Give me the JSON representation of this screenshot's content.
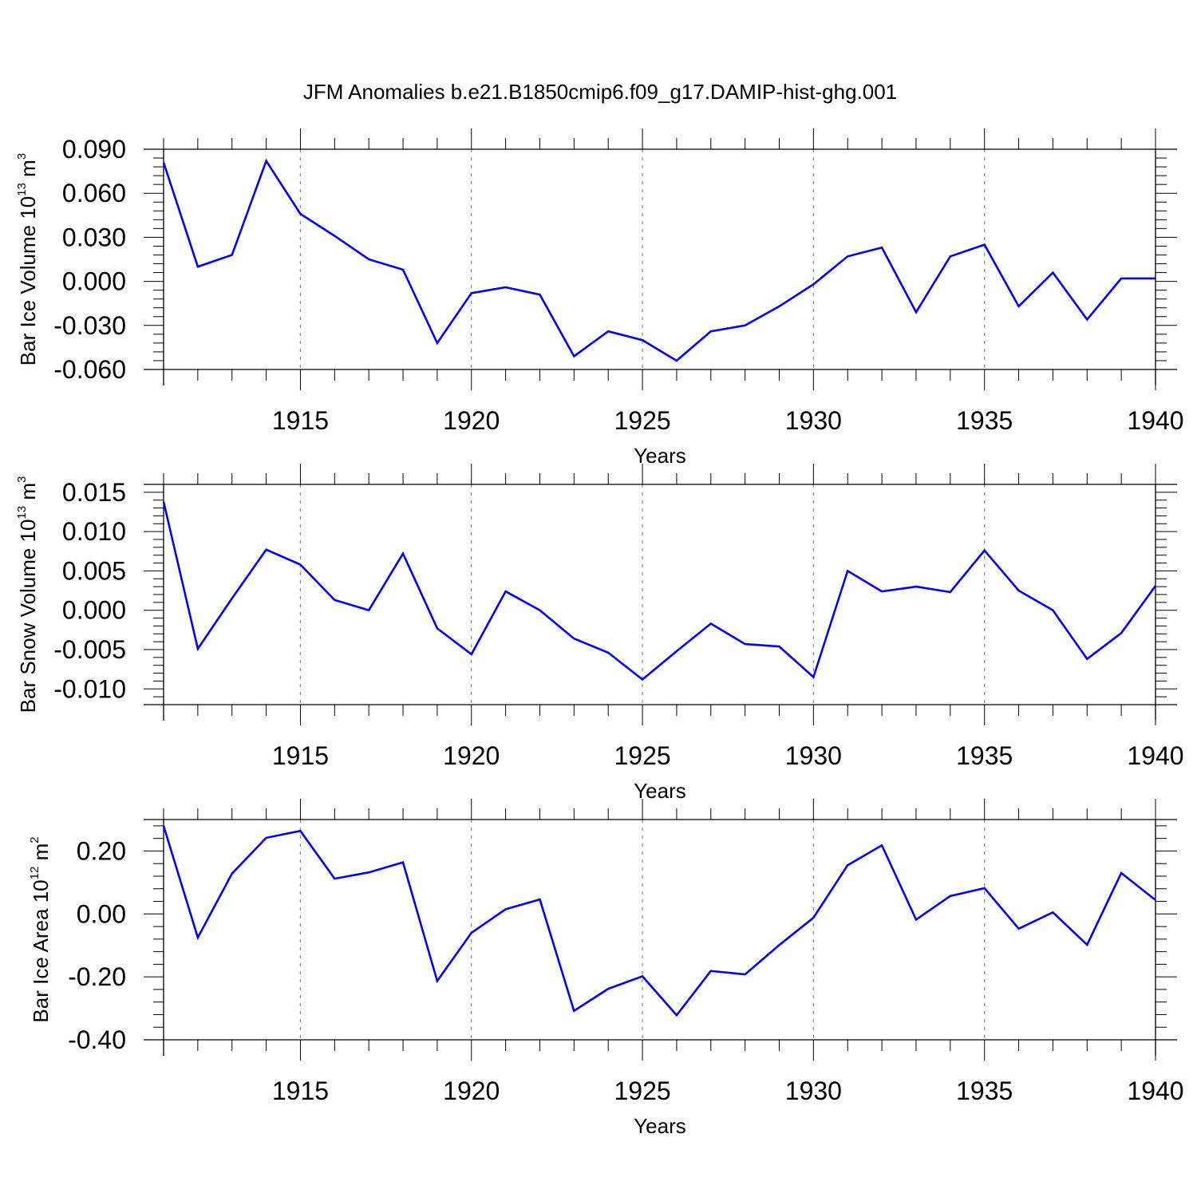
{
  "title": "JFM Anomalies b.e21.B1850cmip6.f09_g17.DAMIP-hist-ghg.001",
  "colors": {
    "line": "#0000ff",
    "axis": "#000000",
    "grid": "#888888"
  },
  "chart_data": [
    {
      "type": "line",
      "xlabel": "Years",
      "ylabel": {
        "prefix": "Bar Ice Volume 10",
        "exp": "13",
        "unit": " m",
        "unit_exp": "3"
      },
      "xlim": [
        1911,
        1940
      ],
      "ylim": [
        -0.06,
        0.09
      ],
      "xticks": [
        "1915",
        "1920",
        "1925",
        "1930",
        "1935",
        "1940"
      ],
      "yticks": [
        "-0.060",
        "-0.030",
        "0.000",
        "0.030",
        "0.060",
        "0.090"
      ],
      "gridlines_x": [
        1915,
        1920,
        1925,
        1930,
        1935
      ],
      "x": [
        1911,
        1912,
        1913,
        1914,
        1915,
        1916,
        1917,
        1918,
        1919,
        1920,
        1921,
        1922,
        1923,
        1924,
        1925,
        1926,
        1927,
        1928,
        1929,
        1930,
        1931,
        1932,
        1933,
        1934,
        1935,
        1936,
        1937,
        1938,
        1939,
        1940
      ],
      "series": [
        {
          "name": "Bar Ice Volume",
          "values": [
            0.081,
            0.01,
            0.018,
            0.082,
            0.046,
            0.031,
            0.015,
            0.008,
            -0.042,
            -0.008,
            -0.004,
            -0.009,
            -0.051,
            -0.034,
            -0.04,
            -0.054,
            -0.034,
            -0.03,
            -0.017,
            -0.002,
            0.017,
            0.023,
            -0.021,
            0.017,
            0.025,
            -0.017,
            0.006,
            -0.026,
            0.002,
            0.002
          ]
        }
      ]
    },
    {
      "type": "line",
      "xlabel": "Years",
      "ylabel": {
        "prefix": "Bar Snow Volume 10",
        "exp": "13",
        "unit": " m",
        "unit_exp": "3"
      },
      "xlim": [
        1911,
        1940
      ],
      "ylim": [
        -0.012,
        0.016
      ],
      "xticks": [
        "1915",
        "1920",
        "1925",
        "1930",
        "1935",
        "1940"
      ],
      "yticks": [
        "-0.010",
        "-0.005",
        "0.000",
        "0.005",
        "0.010",
        "0.015"
      ],
      "gridlines_x": [
        1915,
        1920,
        1925,
        1930,
        1935
      ],
      "x": [
        1911,
        1912,
        1913,
        1914,
        1915,
        1916,
        1917,
        1918,
        1919,
        1920,
        1921,
        1922,
        1923,
        1924,
        1925,
        1926,
        1927,
        1928,
        1929,
        1930,
        1931,
        1932,
        1933,
        1934,
        1935,
        1936,
        1937,
        1938,
        1939,
        1940
      ],
      "series": [
        {
          "name": "Bar Snow Volume",
          "values": [
            0.0138,
            -0.0049,
            0.0015,
            0.0077,
            0.0058,
            0.0013,
            0.0,
            0.0072,
            -0.0023,
            -0.0056,
            0.0024,
            0.0,
            -0.0036,
            -0.0054,
            -0.0088,
            -0.0052,
            -0.0017,
            -0.0043,
            -0.0046,
            -0.0085,
            0.005,
            0.0024,
            0.003,
            0.0023,
            0.0076,
            0.0025,
            0.0,
            -0.0062,
            -0.0029,
            0.0031
          ]
        }
      ]
    },
    {
      "type": "line",
      "xlabel": "Years",
      "ylabel": {
        "prefix": "Bar Ice Area 10",
        "exp": "12",
        "unit": " m",
        "unit_exp": "2"
      },
      "xlim": [
        1911,
        1940
      ],
      "ylim": [
        -0.4,
        0.3
      ],
      "xticks": [
        "1915",
        "1920",
        "1925",
        "1930",
        "1935",
        "1940"
      ],
      "yticks": [
        "-0.40",
        "-0.20",
        "0.00",
        "0.20"
      ],
      "gridlines_x": [
        1915,
        1920,
        1925,
        1930,
        1935
      ],
      "x": [
        1911,
        1912,
        1913,
        1914,
        1915,
        1916,
        1917,
        1918,
        1919,
        1920,
        1921,
        1922,
        1923,
        1924,
        1925,
        1926,
        1927,
        1928,
        1929,
        1930,
        1931,
        1932,
        1933,
        1934,
        1935,
        1936,
        1937,
        1938,
        1939,
        1940
      ],
      "series": [
        {
          "name": "Bar Ice Area",
          "values": [
            0.28,
            -0.075,
            0.128,
            0.242,
            0.264,
            0.112,
            0.132,
            0.164,
            -0.213,
            -0.06,
            0.015,
            0.046,
            -0.308,
            -0.238,
            -0.198,
            -0.322,
            -0.181,
            -0.192,
            -0.099,
            -0.012,
            0.155,
            0.218,
            -0.018,
            0.057,
            0.082,
            -0.047,
            0.005,
            -0.098,
            0.13,
            0.044
          ]
        }
      ]
    }
  ]
}
